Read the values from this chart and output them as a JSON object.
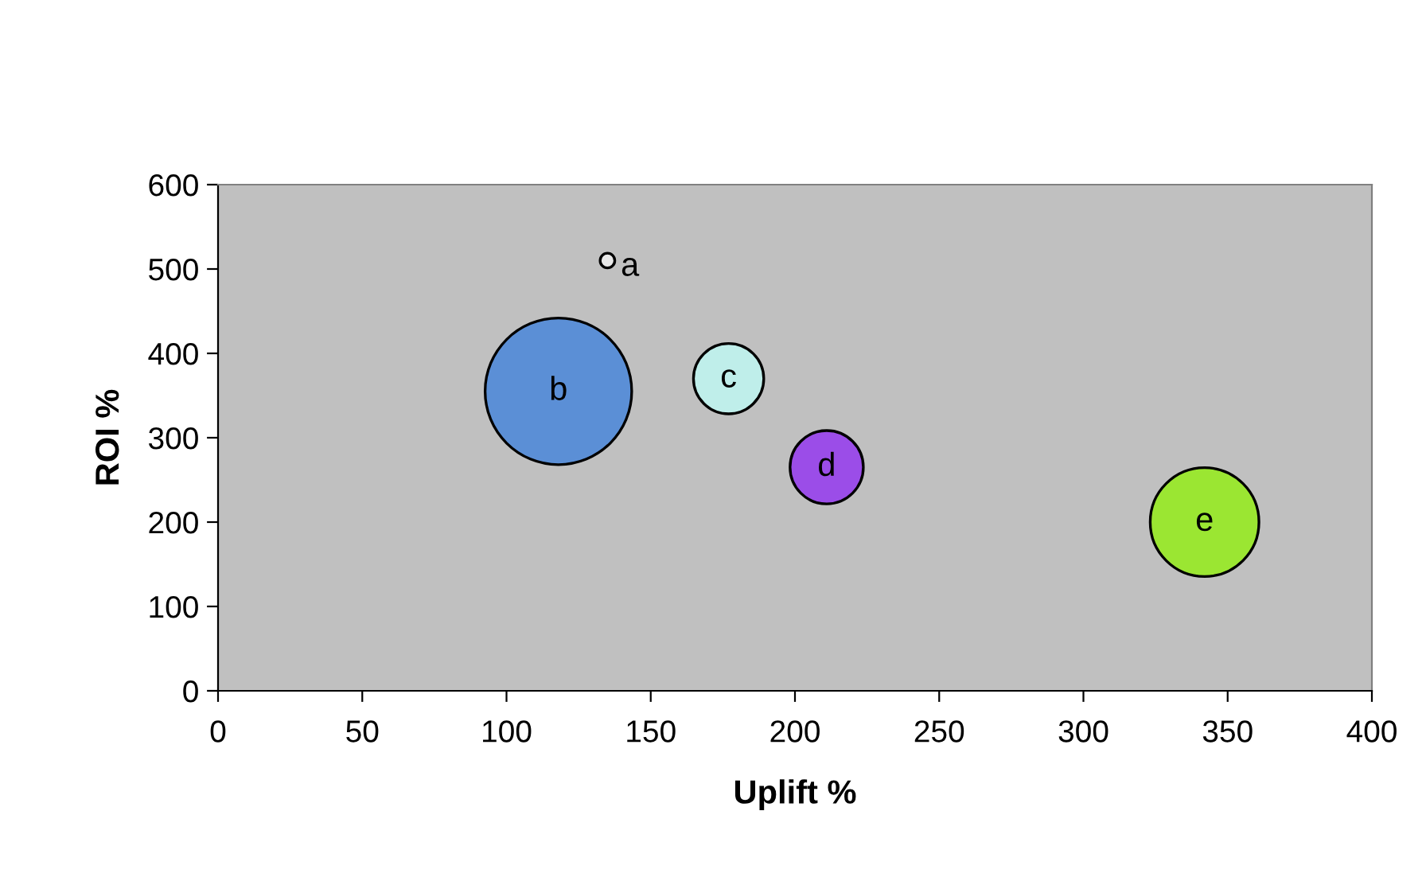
{
  "chart_data": {
    "type": "bubble",
    "xlabel": "Uplift %",
    "ylabel": "ROI %",
    "x": [
      135,
      118,
      177,
      211,
      342
    ],
    "values": [
      510,
      355,
      370,
      265,
      200
    ],
    "sizes": [
      0.01,
      1,
      0.23,
      0.25,
      0.55
    ],
    "colors": [
      "#e8e8e8",
      "#5b8fd6",
      "#bfeeea",
      "#9b4de8",
      "#9be632"
    ],
    "xlim": [
      0,
      400
    ],
    "xticks": [
      0,
      50,
      100,
      150,
      200,
      250,
      300,
      350,
      400
    ],
    "ylim": [
      0,
      600
    ],
    "yticks": [
      0,
      100,
      200,
      300,
      400,
      500,
      600
    ],
    "grid": false,
    "legend": false,
    "annotations": [
      {
        "text": "a",
        "x": 135,
        "y": 510
      },
      {
        "text": "b",
        "x": 118,
        "y": 355
      },
      {
        "text": "c",
        "x": 177,
        "y": 370
      },
      {
        "text": "d",
        "x": 211,
        "y": 265
      },
      {
        "text": "e",
        "x": 342,
        "y": 200
      }
    ]
  }
}
